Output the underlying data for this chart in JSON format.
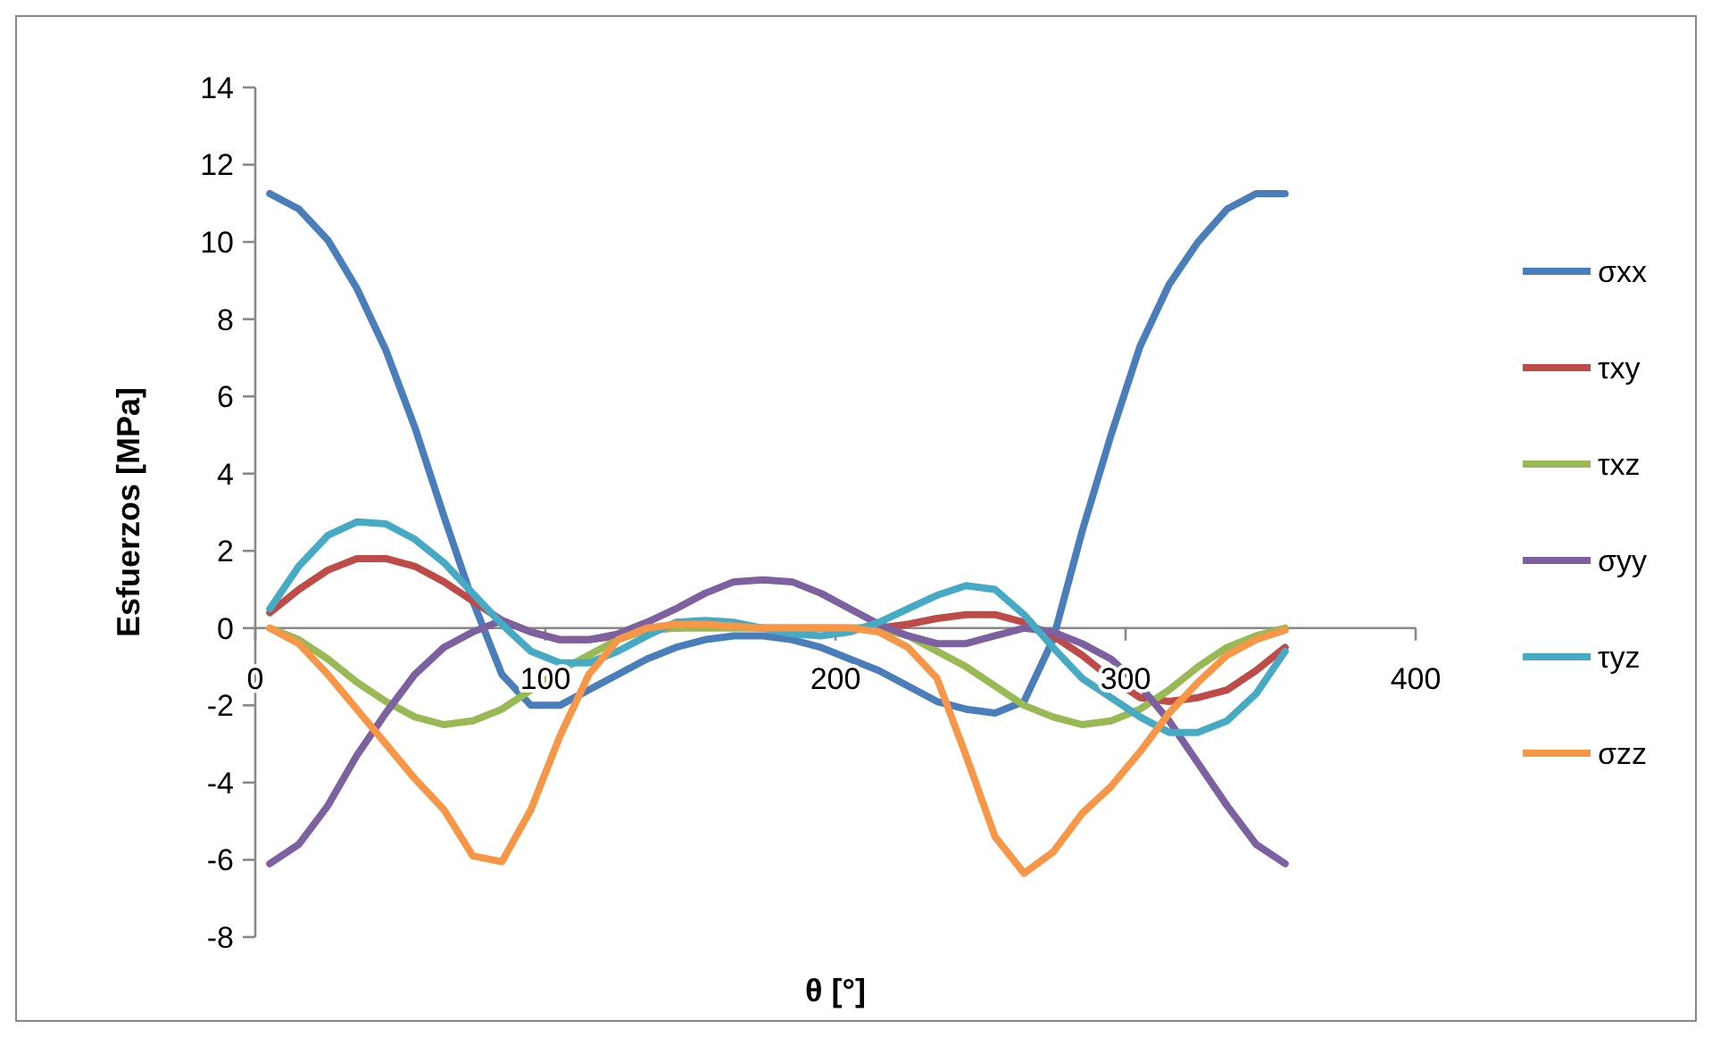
{
  "chart_data": {
    "type": "line",
    "xlabel": "θ [°]",
    "ylabel": "Esfuerzos [MPa]",
    "xlim": [
      0,
      400
    ],
    "xticks": [
      0,
      100,
      200,
      300,
      400
    ],
    "ylim": [
      -8,
      14
    ],
    "yticks": [
      -8,
      -6,
      -4,
      -2,
      0,
      2,
      4,
      6,
      8,
      10,
      12,
      14
    ],
    "grid": false,
    "legend": "right",
    "marker": "none",
    "line_style": "solid",
    "x": [
      5,
      15,
      25,
      35,
      45,
      55,
      65,
      75,
      85,
      95,
      105,
      115,
      125,
      135,
      145,
      155,
      165,
      175,
      185,
      195,
      205,
      215,
      225,
      235,
      245,
      255,
      265,
      275,
      285,
      295,
      305,
      315,
      325,
      335,
      345,
      355
    ],
    "series": [
      {
        "name": "σxx",
        "color": "#4a7ebb",
        "values": [
          11.25,
          10.85,
          10.05,
          8.8,
          7.2,
          5.2,
          2.9,
          0.7,
          -1.2,
          -2.0,
          -2.0,
          -1.6,
          -1.2,
          -0.8,
          -0.5,
          -0.3,
          -0.2,
          -0.2,
          -0.3,
          -0.5,
          -0.8,
          -1.1,
          -1.5,
          -1.9,
          -2.1,
          -2.2,
          -1.9,
          -0.3,
          2.5,
          5.0,
          7.3,
          8.9,
          10.0,
          10.85,
          11.25,
          11.25
        ]
      },
      {
        "name": "τxy",
        "color": "#be4b48",
        "values": [
          0.4,
          1.0,
          1.5,
          1.8,
          1.8,
          1.6,
          1.2,
          0.7,
          0.2,
          -0.1,
          -0.3,
          -0.3,
          -0.2,
          -0.05,
          0,
          0.05,
          0.05,
          0,
          0,
          0,
          0,
          0,
          0.1,
          0.25,
          0.35,
          0.35,
          0.15,
          -0.2,
          -0.7,
          -1.3,
          -1.8,
          -1.9,
          -1.8,
          -1.6,
          -1.1,
          -0.5
        ]
      },
      {
        "name": "τxz",
        "color": "#98b954",
        "values": [
          0,
          -0.3,
          -0.8,
          -1.4,
          -1.9,
          -2.3,
          -2.5,
          -2.4,
          -2.1,
          -1.6,
          -1.1,
          -0.7,
          -0.3,
          -0.05,
          0,
          0,
          0,
          0,
          0,
          0,
          0,
          0,
          -0.2,
          -0.6,
          -1.0,
          -1.5,
          -2.0,
          -2.3,
          -2.5,
          -2.4,
          -2.1,
          -1.6,
          -1.0,
          -0.5,
          -0.2,
          0
        ]
      },
      {
        "name": "σyy",
        "color": "#7d60a0",
        "values": [
          -6.1,
          -5.6,
          -4.6,
          -3.3,
          -2.2,
          -1.2,
          -0.5,
          -0.1,
          0.2,
          -0.1,
          -0.3,
          -0.3,
          -0.15,
          0.15,
          0.5,
          0.9,
          1.2,
          1.25,
          1.2,
          0.9,
          0.5,
          0.1,
          -0.2,
          -0.4,
          -0.4,
          -0.2,
          0,
          -0.1,
          -0.4,
          -0.8,
          -1.5,
          -2.4,
          -3.5,
          -4.6,
          -5.6,
          -6.1
        ]
      },
      {
        "name": "τyz",
        "color": "#46aac5",
        "values": [
          0.5,
          1.6,
          2.4,
          2.75,
          2.7,
          2.3,
          1.7,
          0.9,
          0.1,
          -0.6,
          -0.9,
          -0.9,
          -0.6,
          -0.2,
          0.15,
          0.2,
          0.15,
          0,
          -0.15,
          -0.2,
          -0.1,
          0.15,
          0.5,
          0.85,
          1.1,
          1.0,
          0.35,
          -0.5,
          -1.3,
          -1.8,
          -2.3,
          -2.7,
          -2.7,
          -2.4,
          -1.7,
          -0.6
        ]
      },
      {
        "name": "σzz",
        "color": "#f79646",
        "values": [
          0,
          -0.4,
          -1.2,
          -2.1,
          -3.0,
          -3.9,
          -4.7,
          -5.9,
          -6.05,
          -4.7,
          -2.8,
          -1.2,
          -0.3,
          0,
          0.1,
          0.1,
          0.05,
          0,
          0,
          0,
          0,
          -0.1,
          -0.5,
          -1.3,
          -3.3,
          -5.4,
          -6.35,
          -5.8,
          -4.8,
          -4.1,
          -3.2,
          -2.2,
          -1.4,
          -0.7,
          -0.3,
          -0.05
        ]
      }
    ]
  }
}
